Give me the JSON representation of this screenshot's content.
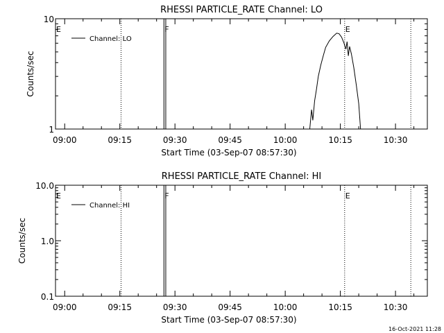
{
  "chart_data": [
    {
      "type": "line",
      "title": "RHESSI PARTICLE_RATE Channel: LO",
      "xlabel": "Start Time (03-Sep-07 08:57:30)",
      "ylabel": "Counts/sec",
      "y_scale": "log",
      "xlim": [
        "08:57:30",
        "10:38:40"
      ],
      "ylim": [
        1,
        10
      ],
      "x_ticks": [
        "09:00",
        "09:15",
        "09:30",
        "09:45",
        "10:00",
        "10:15",
        "10:30"
      ],
      "y_ticks": [
        "1",
        "10"
      ],
      "legend": {
        "position": "top-left",
        "entries": [
          "Channel: LO"
        ]
      },
      "grid": false,
      "event_markers": [
        {
          "label": "E",
          "time": "08:57:30",
          "style": "dotted"
        },
        {
          "label": "",
          "time": "09:15:20",
          "style": "dotted"
        },
        {
          "label": "F",
          "time": "09:27:00",
          "style": "solid"
        },
        {
          "label": "",
          "time": "09:27:30",
          "style": "solid"
        },
        {
          "label": "E",
          "time": "10:16:10",
          "style": "dotted"
        },
        {
          "label": "",
          "time": "10:34:10",
          "style": "dotted"
        }
      ],
      "series": [
        {
          "name": "Channel: LO",
          "points": [
            [
              "10:06:40",
              1
            ],
            [
              "10:07:10",
              1.5
            ],
            [
              "10:07:30",
              1.2
            ],
            [
              "10:08:00",
              1.8
            ],
            [
              "10:08:30",
              2.3
            ],
            [
              "10:09:00",
              3.0
            ],
            [
              "10:09:40",
              3.8
            ],
            [
              "10:10:20",
              4.6
            ],
            [
              "10:11:00",
              5.5
            ],
            [
              "10:12:00",
              6.3
            ],
            [
              "10:13:00",
              6.9
            ],
            [
              "10:14:00",
              7.4
            ],
            [
              "10:14:40",
              7.3
            ],
            [
              "10:15:20",
              6.8
            ],
            [
              "10:16:00",
              6.0
            ],
            [
              "10:16:30",
              5.3
            ],
            [
              "10:16:50",
              6.2
            ],
            [
              "10:17:10",
              4.6
            ],
            [
              "10:17:30",
              5.6
            ],
            [
              "10:18:00",
              4.8
            ],
            [
              "10:18:40",
              3.6
            ],
            [
              "10:19:20",
              2.5
            ],
            [
              "10:20:00",
              1.7
            ],
            [
              "10:20:30",
              1
            ]
          ]
        }
      ]
    },
    {
      "type": "line",
      "title": "RHESSI PARTICLE_RATE Channel: HI",
      "xlabel": "Start Time (03-Sep-07 08:57:30)",
      "ylabel": "Counts/sec",
      "y_scale": "log",
      "xlim": [
        "08:57:30",
        "10:38:40"
      ],
      "ylim": [
        0.1,
        10
      ],
      "x_ticks": [
        "09:00",
        "09:15",
        "09:30",
        "09:45",
        "10:00",
        "10:15",
        "10:30"
      ],
      "y_ticks": [
        "0.1",
        "1.0",
        "10.0"
      ],
      "legend": {
        "position": "top-left",
        "entries": [
          "Channel: HI"
        ]
      },
      "grid": false,
      "event_markers": [
        {
          "label": "E",
          "time": "08:57:30",
          "style": "dotted"
        },
        {
          "label": "",
          "time": "09:15:20",
          "style": "dotted"
        },
        {
          "label": "F",
          "time": "09:27:00",
          "style": "solid"
        },
        {
          "label": "",
          "time": "09:27:30",
          "style": "solid"
        },
        {
          "label": "E",
          "time": "10:16:10",
          "style": "dotted"
        },
        {
          "label": "",
          "time": "10:34:10",
          "style": "dotted"
        }
      ],
      "series": [
        {
          "name": "Channel: HI",
          "points": []
        }
      ]
    }
  ],
  "footer": {
    "timestamp": "16-Oct-2021 11:28"
  }
}
